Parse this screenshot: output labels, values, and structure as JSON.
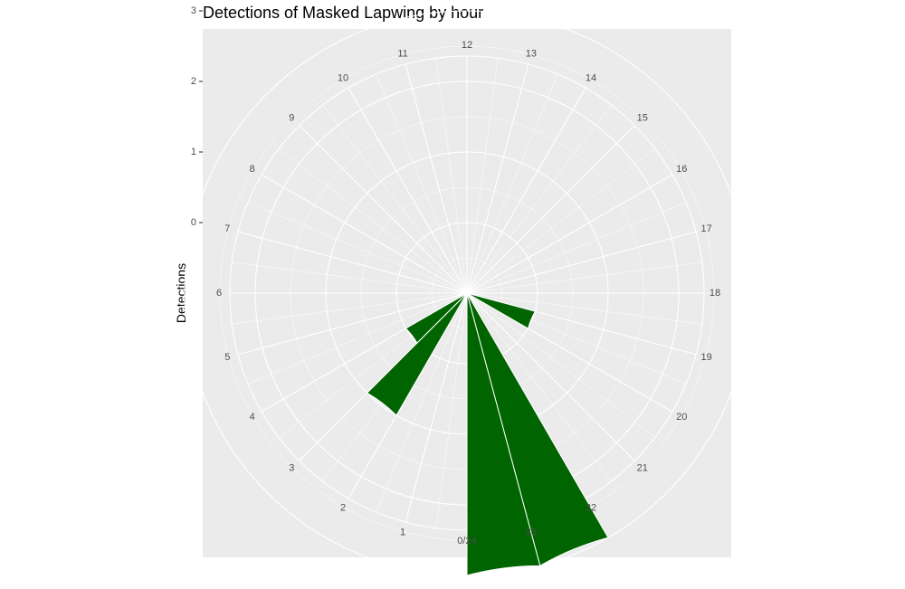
{
  "chart_data": {
    "type": "bar",
    "coord": "polar",
    "title": "Detections of Masked Lapwing by hour",
    "xlabel": "",
    "ylabel": "Detections",
    "y_ticks": [
      "0",
      "1",
      "2",
      "3"
    ],
    "ylim": [
      -1,
      3
    ],
    "x_labels": [
      "0/24",
      "1",
      "2",
      "3",
      "4",
      "5",
      "6",
      "7",
      "8",
      "9",
      "10",
      "11",
      "12",
      "13",
      "14",
      "15",
      "16",
      "17",
      "18",
      "19",
      "20",
      "21",
      "22",
      "23"
    ],
    "x": [
      2.5,
      3.5,
      19.5,
      22.5,
      23.5
    ],
    "values": [
      1,
      0,
      0,
      3,
      3
    ],
    "bar_color": "#006400",
    "grid": true,
    "legend": "none"
  }
}
